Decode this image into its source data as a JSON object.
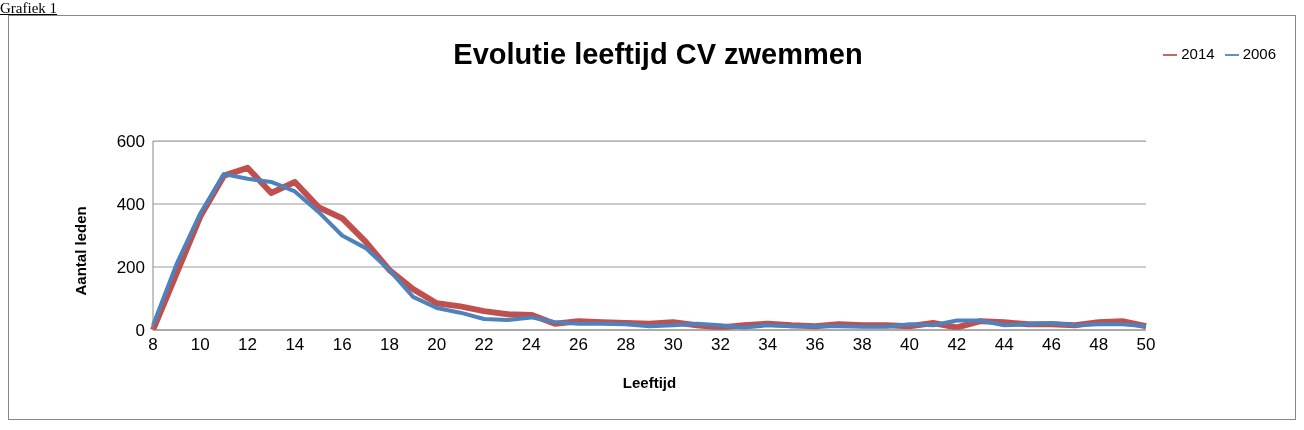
{
  "chart_data": {
    "type": "line",
    "title": "Evolutie leeftijd CV zwemmen",
    "xlabel": "Leeftijd",
    "ylabel": "Aantal leden",
    "annotations": [
      "Grafiek 1"
    ],
    "categories": [
      "8",
      null,
      "10",
      null,
      "12",
      null,
      "14",
      null,
      "16",
      null,
      "18",
      null,
      "20",
      null,
      "22",
      null,
      "24",
      null,
      "26",
      null,
      "28",
      null,
      "30",
      null,
      "32",
      null,
      "34",
      null,
      "36",
      null,
      "38",
      null,
      "40",
      null,
      "42",
      null,
      "44",
      null,
      "46",
      null,
      "48",
      null,
      "50"
    ],
    "series": [
      {
        "name": "2014",
        "color": "#c0504d",
        "values": [
          0,
          180,
          360,
          490,
          515,
          435,
          470,
          390,
          355,
          280,
          190,
          130,
          85,
          75,
          60,
          50,
          48,
          20,
          28,
          25,
          22,
          20,
          25,
          15,
          8,
          15,
          20,
          15,
          12,
          18,
          15,
          15,
          12,
          22,
          8,
          28,
          25,
          18,
          18,
          15,
          25,
          28,
          12
        ]
      },
      {
        "name": "2006",
        "color": "#4f81bd",
        "values": [
          15,
          210,
          370,
          495,
          480,
          470,
          440,
          375,
          300,
          260,
          190,
          105,
          70,
          55,
          35,
          32,
          40,
          25,
          20,
          20,
          18,
          12,
          15,
          20,
          15,
          8,
          15,
          12,
          12,
          12,
          10,
          10,
          18,
          15,
          30,
          30,
          15,
          18,
          22,
          15,
          18,
          18,
          12
        ]
      }
    ],
    "ylim": [
      0,
      600
    ],
    "yticks": [
      0,
      200,
      400,
      600
    ],
    "grid": "y",
    "legend": "top right"
  }
}
